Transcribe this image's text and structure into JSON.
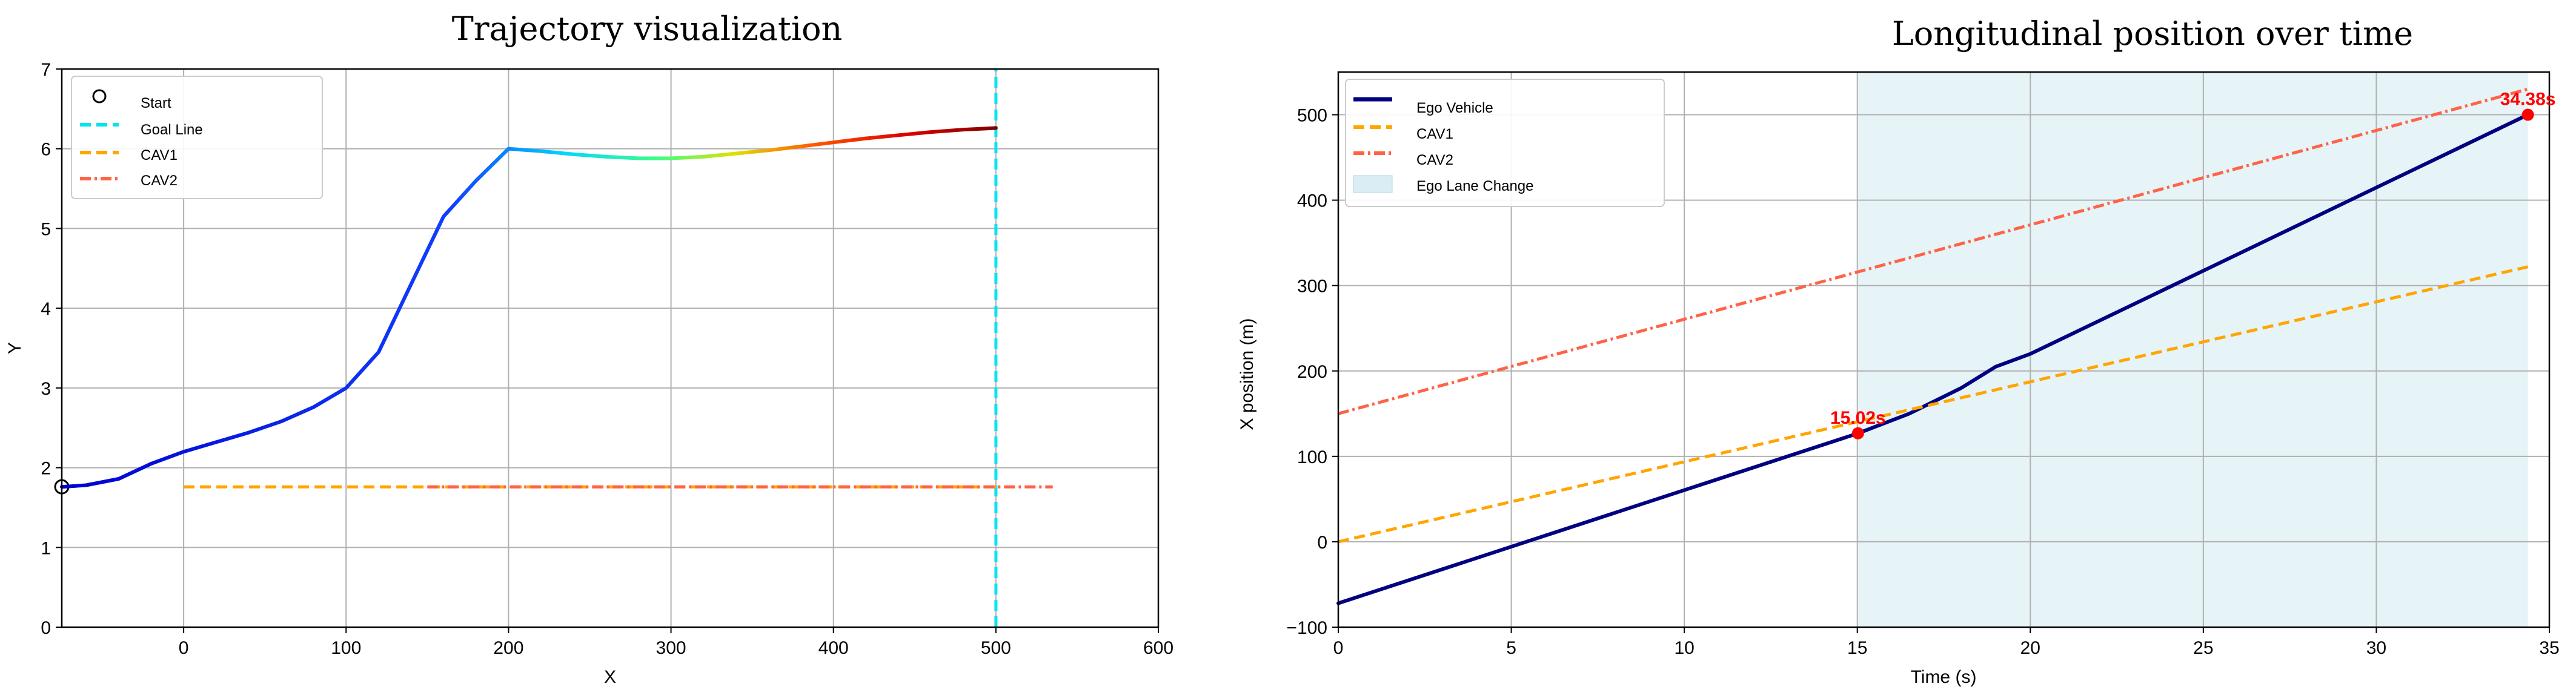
{
  "chart_data": [
    {
      "type": "line",
      "title": "Trajectory visualization",
      "xlabel": "X",
      "ylabel": "Y",
      "xlim": [
        -75,
        600
      ],
      "ylim": [
        0,
        7
      ],
      "xticks": [
        0,
        100,
        200,
        300,
        400,
        500,
        600
      ],
      "yticks": [
        0,
        1,
        2,
        3,
        4,
        5,
        6,
        7
      ],
      "grid": true,
      "legend_position": "top-left",
      "legend": [
        "Start",
        "Goal Line",
        "CAV1",
        "CAV2"
      ],
      "series": [
        {
          "name": "Start",
          "style": "marker-circle",
          "color": "#000000",
          "x": [
            -75
          ],
          "y": [
            1.76
          ]
        },
        {
          "name": "Goal Line",
          "style": "dashed",
          "color": "#00e5ee",
          "x": [
            500,
            500
          ],
          "y": [
            0,
            7
          ]
        },
        {
          "name": "CAV1",
          "style": "dashed",
          "color": "#ffa500",
          "x": [
            0,
            500
          ],
          "y": [
            1.76,
            1.76
          ]
        },
        {
          "name": "CAV2",
          "style": "dashdot",
          "color": "#ff6347",
          "x": [
            150,
            535
          ],
          "y": [
            1.76,
            1.76
          ]
        },
        {
          "name": "",
          "style": "solid-gradient",
          "color": "#0000cd",
          "x": [
            -75,
            -60,
            -40,
            -20,
            0,
            20,
            40,
            60,
            80,
            100,
            120,
            140,
            160,
            180,
            200,
            220,
            240,
            260,
            280,
            300,
            320,
            340,
            360,
            380,
            400,
            420,
            440,
            460,
            480,
            500
          ],
          "y": [
            1.76,
            1.78,
            1.86,
            2.05,
            2.2,
            2.32,
            2.44,
            2.58,
            2.76,
            3.0,
            3.45,
            4.3,
            5.15,
            5.6,
            6.0,
            5.97,
            5.93,
            5.9,
            5.88,
            5.88,
            5.9,
            5.94,
            5.98,
            6.03,
            6.08,
            6.13,
            6.17,
            6.21,
            6.24,
            6.26
          ]
        }
      ]
    },
    {
      "type": "line",
      "title": "Longitudinal position over time",
      "xlabel": "Time (s)",
      "ylabel": "X position (m)",
      "xlim": [
        0,
        35
      ],
      "ylim": [
        -100,
        550
      ],
      "xticks": [
        0,
        5,
        10,
        15,
        20,
        25,
        30,
        35
      ],
      "yticks": [
        -100,
        0,
        100,
        200,
        300,
        400,
        500
      ],
      "grid": true,
      "legend_position": "top-left",
      "legend": [
        "Ego Vehicle",
        "CAV1",
        "CAV2",
        "Ego Lane Change"
      ],
      "shaded_region": {
        "name": "Ego Lane Change",
        "x": [
          15.02,
          34.38
        ],
        "color": "#add8e6"
      },
      "series": [
        {
          "name": "Ego Vehicle",
          "style": "solid",
          "color": "#000080",
          "x": [
            0,
            15.02,
            16.5,
            18,
            19,
            20,
            34.38
          ],
          "y": [
            -72,
            127,
            150,
            180,
            205,
            220,
            500
          ]
        },
        {
          "name": "CAV1",
          "style": "dashed",
          "color": "#ffa500",
          "x": [
            0,
            34.38
          ],
          "y": [
            0,
            322
          ]
        },
        {
          "name": "CAV2",
          "style": "dashdot",
          "color": "#ff6347",
          "x": [
            0,
            34.38
          ],
          "y": [
            150,
            530
          ]
        }
      ],
      "annotations": [
        {
          "text": "15.02s",
          "x": 15.02,
          "y": 127
        },
        {
          "text": "34.38s",
          "x": 34.38,
          "y": 500
        }
      ]
    }
  ]
}
